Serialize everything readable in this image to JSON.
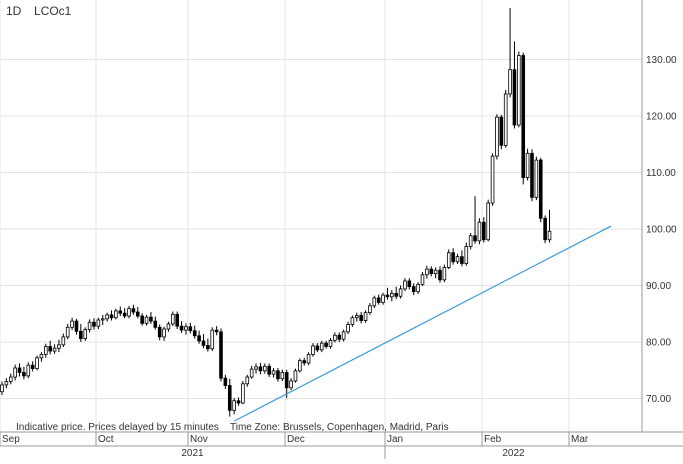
{
  "header": {
    "interval": "1D",
    "symbol": "LCOc1"
  },
  "footer_note": {
    "delay": "Indicative price. Prices delayed by 15 minutes",
    "timezone": "Time Zone: Brussels, Copenhagen, Madrid, Paris"
  },
  "colors": {
    "up": "#ffffff",
    "down": "#000000",
    "wick": "#000000",
    "trendline": "#3a9ad9",
    "grid": "#e3e3e3",
    "axis": "#999999"
  },
  "chart_data": {
    "type": "candlestick",
    "instrument": "LCOc1",
    "interval": "1D",
    "y_axis": {
      "position": "right",
      "range": [
        63,
        140
      ],
      "ticks": [
        "70.00",
        "80.00",
        "90.00",
        "100.00",
        "110.00",
        "120.00",
        "130.00"
      ],
      "tick_values": [
        70,
        80,
        90,
        100,
        110,
        120,
        130
      ]
    },
    "x_axis": {
      "months": [
        "Sep",
        "Oct",
        "Nov",
        "Dec",
        "Jan",
        "Feb",
        "Mar"
      ],
      "years": [
        "2021",
        "2022"
      ],
      "month_start_index": [
        0,
        22,
        43,
        65,
        88,
        110,
        130
      ],
      "year_index": [
        0,
        88
      ]
    },
    "grid": true,
    "candles": [
      {
        "o": 71.2,
        "h": 73.0,
        "l": 70.6,
        "c": 72.4
      },
      {
        "o": 72.4,
        "h": 73.6,
        "l": 71.8,
        "c": 73.0
      },
      {
        "o": 73.0,
        "h": 74.4,
        "l": 72.5,
        "c": 73.8
      },
      {
        "o": 73.8,
        "h": 76.0,
        "l": 73.2,
        "c": 75.4
      },
      {
        "o": 75.4,
        "h": 76.2,
        "l": 73.9,
        "c": 74.6
      },
      {
        "o": 74.6,
        "h": 75.6,
        "l": 73.4,
        "c": 74.0
      },
      {
        "o": 74.0,
        "h": 76.4,
        "l": 73.6,
        "c": 75.9
      },
      {
        "o": 75.9,
        "h": 76.6,
        "l": 74.8,
        "c": 75.3
      },
      {
        "o": 75.3,
        "h": 77.6,
        "l": 75.0,
        "c": 77.2
      },
      {
        "o": 77.2,
        "h": 78.2,
        "l": 76.5,
        "c": 77.8
      },
      {
        "o": 77.8,
        "h": 79.7,
        "l": 77.2,
        "c": 79.2
      },
      {
        "o": 79.2,
        "h": 80.2,
        "l": 77.8,
        "c": 78.4
      },
      {
        "o": 78.4,
        "h": 79.6,
        "l": 77.9,
        "c": 78.9
      },
      {
        "o": 78.9,
        "h": 80.4,
        "l": 78.2,
        "c": 79.5
      },
      {
        "o": 79.5,
        "h": 81.5,
        "l": 79.1,
        "c": 80.9
      },
      {
        "o": 80.9,
        "h": 83.2,
        "l": 80.5,
        "c": 82.6
      },
      {
        "o": 82.6,
        "h": 84.3,
        "l": 82.1,
        "c": 83.7
      },
      {
        "o": 83.7,
        "h": 84.1,
        "l": 81.3,
        "c": 81.9
      },
      {
        "o": 81.9,
        "h": 83.2,
        "l": 80.0,
        "c": 80.6
      },
      {
        "o": 80.6,
        "h": 82.6,
        "l": 80.2,
        "c": 82.2
      },
      {
        "o": 82.2,
        "h": 84.0,
        "l": 81.7,
        "c": 83.5
      },
      {
        "o": 83.5,
        "h": 84.2,
        "l": 82.2,
        "c": 82.8
      },
      {
        "o": 82.8,
        "h": 84.3,
        "l": 82.3,
        "c": 83.9
      },
      {
        "o": 83.9,
        "h": 84.8,
        "l": 83.0,
        "c": 84.1
      },
      {
        "o": 84.1,
        "h": 85.2,
        "l": 83.6,
        "c": 84.8
      },
      {
        "o": 84.8,
        "h": 85.6,
        "l": 83.8,
        "c": 84.3
      },
      {
        "o": 84.3,
        "h": 85.9,
        "l": 84.0,
        "c": 85.5
      },
      {
        "o": 85.5,
        "h": 86.3,
        "l": 84.6,
        "c": 85.1
      },
      {
        "o": 85.1,
        "h": 86.0,
        "l": 84.2,
        "c": 84.6
      },
      {
        "o": 84.6,
        "h": 86.4,
        "l": 84.2,
        "c": 85.9
      },
      {
        "o": 85.9,
        "h": 86.6,
        "l": 84.8,
        "c": 85.3
      },
      {
        "o": 85.3,
        "h": 86.2,
        "l": 84.2,
        "c": 84.6
      },
      {
        "o": 84.6,
        "h": 85.1,
        "l": 82.9,
        "c": 83.3
      },
      {
        "o": 83.3,
        "h": 84.8,
        "l": 82.9,
        "c": 84.4
      },
      {
        "o": 84.4,
        "h": 85.3,
        "l": 83.2,
        "c": 83.7
      },
      {
        "o": 83.7,
        "h": 84.5,
        "l": 82.2,
        "c": 82.6
      },
      {
        "o": 82.6,
        "h": 83.1,
        "l": 80.3,
        "c": 80.9
      },
      {
        "o": 80.9,
        "h": 82.7,
        "l": 80.2,
        "c": 82.3
      },
      {
        "o": 82.3,
        "h": 83.6,
        "l": 81.8,
        "c": 83.2
      },
      {
        "o": 83.2,
        "h": 85.4,
        "l": 82.8,
        "c": 84.9
      },
      {
        "o": 84.9,
        "h": 85.4,
        "l": 82.3,
        "c": 82.8
      },
      {
        "o": 82.8,
        "h": 83.7,
        "l": 81.6,
        "c": 82.1
      },
      {
        "o": 82.1,
        "h": 83.3,
        "l": 81.3,
        "c": 82.7
      },
      {
        "o": 82.7,
        "h": 83.4,
        "l": 81.5,
        "c": 82.0
      },
      {
        "o": 82.0,
        "h": 82.9,
        "l": 80.6,
        "c": 81.1
      },
      {
        "o": 81.1,
        "h": 82.0,
        "l": 79.7,
        "c": 80.2
      },
      {
        "o": 80.2,
        "h": 81.4,
        "l": 78.9,
        "c": 79.4
      },
      {
        "o": 79.4,
        "h": 80.6,
        "l": 78.3,
        "c": 78.8
      },
      {
        "o": 78.8,
        "h": 82.6,
        "l": 78.4,
        "c": 82.1
      },
      {
        "o": 82.1,
        "h": 82.8,
        "l": 81.2,
        "c": 81.8
      },
      {
        "o": 81.8,
        "h": 82.4,
        "l": 73.0,
        "c": 73.6
      },
      {
        "o": 73.6,
        "h": 74.2,
        "l": 71.7,
        "c": 72.3
      },
      {
        "o": 72.3,
        "h": 73.5,
        "l": 66.8,
        "c": 67.9
      },
      {
        "o": 67.9,
        "h": 70.1,
        "l": 67.2,
        "c": 69.6
      },
      {
        "o": 69.6,
        "h": 70.2,
        "l": 68.7,
        "c": 69.2
      },
      {
        "o": 69.2,
        "h": 73.1,
        "l": 69.0,
        "c": 72.6
      },
      {
        "o": 72.6,
        "h": 74.2,
        "l": 72.1,
        "c": 73.8
      },
      {
        "o": 73.8,
        "h": 75.8,
        "l": 73.5,
        "c": 75.2
      },
      {
        "o": 75.2,
        "h": 76.2,
        "l": 74.4,
        "c": 75.6
      },
      {
        "o": 75.6,
        "h": 76.3,
        "l": 74.3,
        "c": 74.9
      },
      {
        "o": 74.9,
        "h": 76.2,
        "l": 74.4,
        "c": 75.7
      },
      {
        "o": 75.7,
        "h": 76.2,
        "l": 73.8,
        "c": 74.3
      },
      {
        "o": 74.3,
        "h": 75.4,
        "l": 73.7,
        "c": 74.9
      },
      {
        "o": 74.9,
        "h": 75.4,
        "l": 73.0,
        "c": 73.5
      },
      {
        "o": 73.5,
        "h": 75.1,
        "l": 73.1,
        "c": 74.6
      },
      {
        "o": 74.6,
        "h": 75.1,
        "l": 70.1,
        "c": 71.9
      },
      {
        "o": 71.9,
        "h": 73.6,
        "l": 71.5,
        "c": 73.1
      },
      {
        "o": 73.1,
        "h": 75.3,
        "l": 72.8,
        "c": 74.9
      },
      {
        "o": 74.9,
        "h": 77.1,
        "l": 74.6,
        "c": 76.7
      },
      {
        "o": 76.7,
        "h": 77.2,
        "l": 75.8,
        "c": 76.3
      },
      {
        "o": 76.3,
        "h": 78.2,
        "l": 75.9,
        "c": 77.8
      },
      {
        "o": 77.8,
        "h": 79.8,
        "l": 77.4,
        "c": 79.3
      },
      {
        "o": 79.3,
        "h": 79.8,
        "l": 78.2,
        "c": 78.6
      },
      {
        "o": 78.6,
        "h": 80.2,
        "l": 78.2,
        "c": 79.8
      },
      {
        "o": 79.8,
        "h": 80.2,
        "l": 78.8,
        "c": 79.2
      },
      {
        "o": 79.2,
        "h": 80.7,
        "l": 78.8,
        "c": 80.3
      },
      {
        "o": 80.3,
        "h": 81.7,
        "l": 79.9,
        "c": 81.2
      },
      {
        "o": 81.2,
        "h": 81.7,
        "l": 80.0,
        "c": 80.5
      },
      {
        "o": 80.5,
        "h": 82.2,
        "l": 80.1,
        "c": 81.8
      },
      {
        "o": 81.8,
        "h": 83.6,
        "l": 81.4,
        "c": 83.1
      },
      {
        "o": 83.1,
        "h": 84.7,
        "l": 82.7,
        "c": 84.3
      },
      {
        "o": 84.3,
        "h": 85.2,
        "l": 83.6,
        "c": 84.7
      },
      {
        "o": 84.7,
        "h": 85.3,
        "l": 83.3,
        "c": 83.8
      },
      {
        "o": 83.8,
        "h": 85.6,
        "l": 83.4,
        "c": 85.2
      },
      {
        "o": 85.2,
        "h": 86.9,
        "l": 84.8,
        "c": 86.4
      },
      {
        "o": 86.4,
        "h": 88.2,
        "l": 86.0,
        "c": 87.8
      },
      {
        "o": 87.8,
        "h": 88.4,
        "l": 86.6,
        "c": 87.0
      },
      {
        "o": 87.0,
        "h": 88.7,
        "l": 86.6,
        "c": 88.3
      },
      {
        "o": 88.3,
        "h": 89.6,
        "l": 87.5,
        "c": 88.0
      },
      {
        "o": 88.0,
        "h": 89.2,
        "l": 87.2,
        "c": 88.6
      },
      {
        "o": 88.6,
        "h": 89.8,
        "l": 87.6,
        "c": 88.1
      },
      {
        "o": 88.1,
        "h": 90.0,
        "l": 87.7,
        "c": 89.4
      },
      {
        "o": 89.4,
        "h": 91.3,
        "l": 89.0,
        "c": 90.8
      },
      {
        "o": 90.8,
        "h": 91.3,
        "l": 89.3,
        "c": 89.8
      },
      {
        "o": 89.8,
        "h": 90.4,
        "l": 88.3,
        "c": 88.9
      },
      {
        "o": 88.9,
        "h": 90.6,
        "l": 88.5,
        "c": 90.2
      },
      {
        "o": 90.2,
        "h": 92.4,
        "l": 89.9,
        "c": 91.9
      },
      {
        "o": 91.9,
        "h": 93.5,
        "l": 91.2,
        "c": 92.9
      },
      {
        "o": 92.9,
        "h": 93.4,
        "l": 91.6,
        "c": 92.1
      },
      {
        "o": 92.1,
        "h": 93.2,
        "l": 91.3,
        "c": 92.7
      },
      {
        "o": 92.7,
        "h": 93.4,
        "l": 90.5,
        "c": 91.0
      },
      {
        "o": 91.0,
        "h": 93.7,
        "l": 90.6,
        "c": 93.2
      },
      {
        "o": 93.2,
        "h": 96.4,
        "l": 92.9,
        "c": 95.8
      },
      {
        "o": 95.8,
        "h": 96.6,
        "l": 93.7,
        "c": 94.2
      },
      {
        "o": 94.2,
        "h": 95.6,
        "l": 93.8,
        "c": 95.1
      },
      {
        "o": 95.1,
        "h": 96.2,
        "l": 93.4,
        "c": 93.9
      },
      {
        "o": 93.9,
        "h": 97.6,
        "l": 93.5,
        "c": 96.9
      },
      {
        "o": 96.9,
        "h": 99.3,
        "l": 96.4,
        "c": 98.8
      },
      {
        "o": 98.8,
        "h": 105.8,
        "l": 97.4,
        "c": 97.9
      },
      {
        "o": 97.9,
        "h": 101.9,
        "l": 97.3,
        "c": 101.2
      },
      {
        "o": 101.2,
        "h": 102.1,
        "l": 97.6,
        "c": 98.1
      },
      {
        "o": 98.1,
        "h": 105.2,
        "l": 97.8,
        "c": 104.6
      },
      {
        "o": 104.6,
        "h": 113.4,
        "l": 104.1,
        "c": 112.9
      },
      {
        "o": 112.9,
        "h": 120.3,
        "l": 112.3,
        "c": 119.8
      },
      {
        "o": 119.8,
        "h": 120.2,
        "l": 114.1,
        "c": 114.8
      },
      {
        "o": 114.8,
        "h": 124.6,
        "l": 114.4,
        "c": 123.9
      },
      {
        "o": 123.9,
        "h": 139.1,
        "l": 123.3,
        "c": 128.2
      },
      {
        "o": 128.2,
        "h": 133.2,
        "l": 117.8,
        "c": 118.4
      },
      {
        "o": 118.4,
        "h": 131.4,
        "l": 118.0,
        "c": 130.7
      },
      {
        "o": 130.7,
        "h": 131.2,
        "l": 107.9,
        "c": 109.1
      },
      {
        "o": 109.1,
        "h": 114.2,
        "l": 108.6,
        "c": 113.4
      },
      {
        "o": 113.4,
        "h": 114.1,
        "l": 104.9,
        "c": 105.6
      },
      {
        "o": 105.6,
        "h": 112.8,
        "l": 105.1,
        "c": 112.2
      },
      {
        "o": 112.2,
        "h": 112.6,
        "l": 101.2,
        "c": 101.9
      },
      {
        "o": 101.9,
        "h": 102.4,
        "l": 97.5,
        "c": 98.1
      },
      {
        "o": 98.1,
        "h": 103.4,
        "l": 97.6,
        "c": 99.6
      }
    ],
    "trendline": {
      "from": {
        "index": 53,
        "value": 66.0
      },
      "to": {
        "index": 139,
        "value": 100.5
      }
    }
  }
}
